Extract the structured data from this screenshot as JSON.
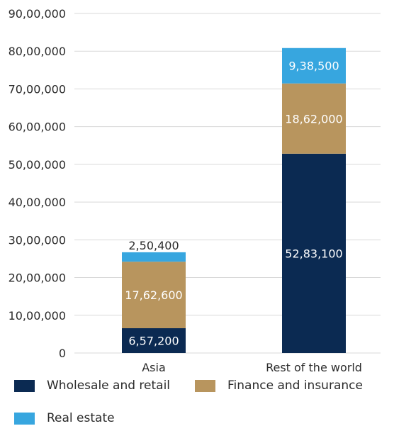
{
  "chart_data": {
    "type": "bar",
    "stacked": true,
    "categories": [
      "Asia",
      "Rest of the world"
    ],
    "series": [
      {
        "name": "Wholesale and retail",
        "color": "#0b2a52",
        "label_color": "#ffffff",
        "values": [
          657200,
          5283100
        ],
        "labels": [
          "6,57,200",
          "52,83,100"
        ]
      },
      {
        "name": "Finance and insurance",
        "color": "#b8955e",
        "label_color": "#ffffff",
        "values": [
          1762600,
          1862000
        ],
        "labels": [
          "17,62,600",
          "18,62,000"
        ]
      },
      {
        "name": "Real estate",
        "color": "#37a6df",
        "label_color": "#ffffff",
        "values": [
          250400,
          938500
        ],
        "labels": [
          "2,50,400",
          "9,38,500"
        ]
      }
    ],
    "y_ticks": [
      0,
      1000000,
      2000000,
      3000000,
      4000000,
      5000000,
      6000000,
      7000000,
      8000000,
      9000000
    ],
    "y_tick_labels": [
      "0",
      "10,00,000",
      "20,00,000",
      "30,00,000",
      "40,00,000",
      "50,00,000",
      "60,00,000",
      "70,00,000",
      "80,00,000",
      "90,00,000"
    ],
    "ylim": [
      0,
      9000000
    ],
    "grid": true,
    "legend_position": "bottom",
    "colors": {
      "grid": "#d9d9d9",
      "axis_text": "#2b2b2b"
    }
  }
}
